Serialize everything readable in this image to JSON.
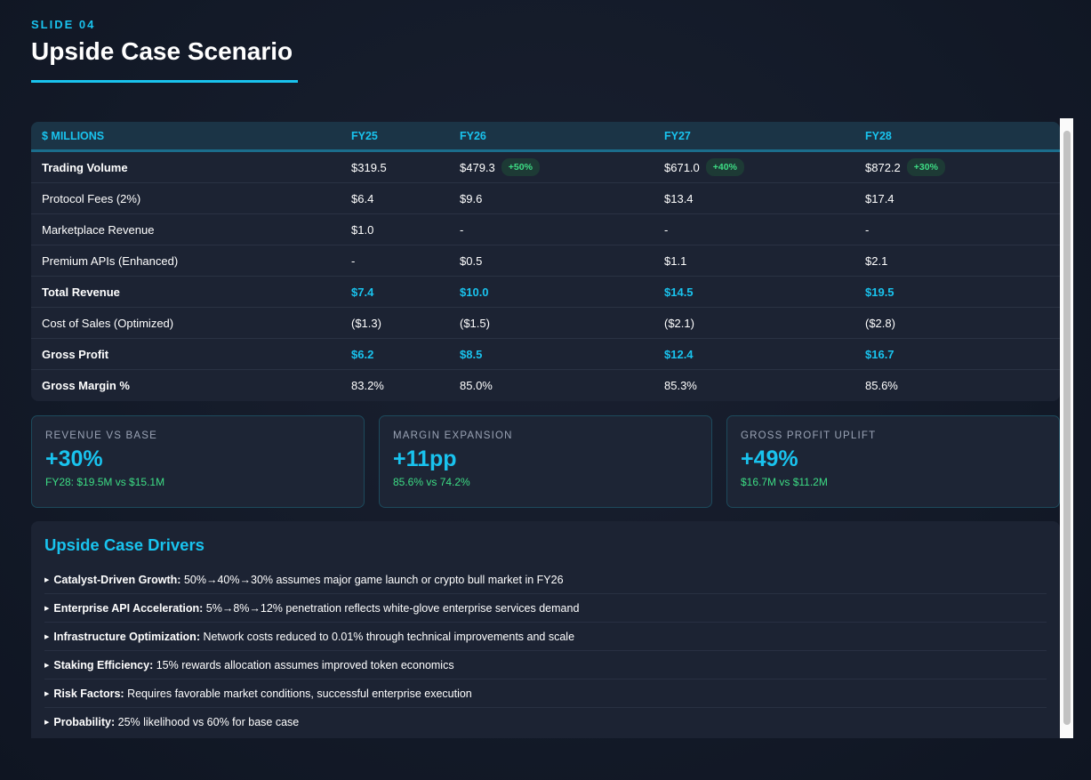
{
  "header": {
    "slide": "SLIDE 04",
    "title": "Upside Case Scenario"
  },
  "table": {
    "columns": [
      "$ MILLIONS",
      "FY25",
      "FY26",
      "FY27",
      "FY28"
    ],
    "rows": [
      {
        "label": "Trading Volume",
        "style": "bold",
        "values": [
          "$319.5",
          "$479.3",
          "$671.0",
          "$872.2"
        ],
        "badges": [
          "",
          "+50%",
          "+40%",
          "+30%"
        ]
      },
      {
        "label": "Protocol Fees (2%)",
        "values": [
          "$6.4",
          "$9.6",
          "$13.4",
          "$17.4"
        ]
      },
      {
        "label": "Marketplace Revenue",
        "values": [
          "$1.0",
          "-",
          "-",
          "-"
        ]
      },
      {
        "label": "Premium APIs (Enhanced)",
        "values": [
          "-",
          "$0.5",
          "$1.1",
          "$2.1"
        ]
      },
      {
        "label": "Total Revenue",
        "style": "cyan",
        "values": [
          "$7.4",
          "$10.0",
          "$14.5",
          "$19.5"
        ]
      },
      {
        "label": "Cost of Sales (Optimized)",
        "values": [
          "($1.3)",
          "($1.5)",
          "($2.1)",
          "($2.8)"
        ]
      },
      {
        "label": "Gross Profit",
        "style": "cyan",
        "values": [
          "$6.2",
          "$8.5",
          "$12.4",
          "$16.7"
        ]
      },
      {
        "label": "Gross Margin %",
        "style": "boldlabel",
        "values": [
          "83.2%",
          "85.0%",
          "85.3%",
          "85.6%"
        ]
      }
    ]
  },
  "cards": [
    {
      "label": "REVENUE VS BASE",
      "value": "+30%",
      "sub": "FY28: $19.5M vs $15.1M"
    },
    {
      "label": "MARGIN EXPANSION",
      "value": "+11pp",
      "sub": "85.6% vs 74.2%"
    },
    {
      "label": "GROSS PROFIT UPLIFT",
      "value": "+49%",
      "sub": "$16.7M vs $11.2M"
    }
  ],
  "drivers": {
    "title": "Upside Case Drivers",
    "items": [
      {
        "bold": "Catalyst-Driven Growth:",
        "text": " 50%→40%→30% assumes major game launch or crypto bull market in FY26"
      },
      {
        "bold": "Enterprise API Acceleration:",
        "text": " 5%→8%→12% penetration reflects white-glove enterprise services demand"
      },
      {
        "bold": "Infrastructure Optimization:",
        "text": " Network costs reduced to 0.01% through technical improvements and scale"
      },
      {
        "bold": "Staking Efficiency:",
        "text": " 15% rewards allocation assumes improved token economics"
      },
      {
        "bold": "Risk Factors:",
        "text": " Requires favorable market conditions, successful enterprise execution"
      },
      {
        "bold": "Probability:",
        "text": " 25% likelihood vs 60% for base case"
      }
    ]
  }
}
